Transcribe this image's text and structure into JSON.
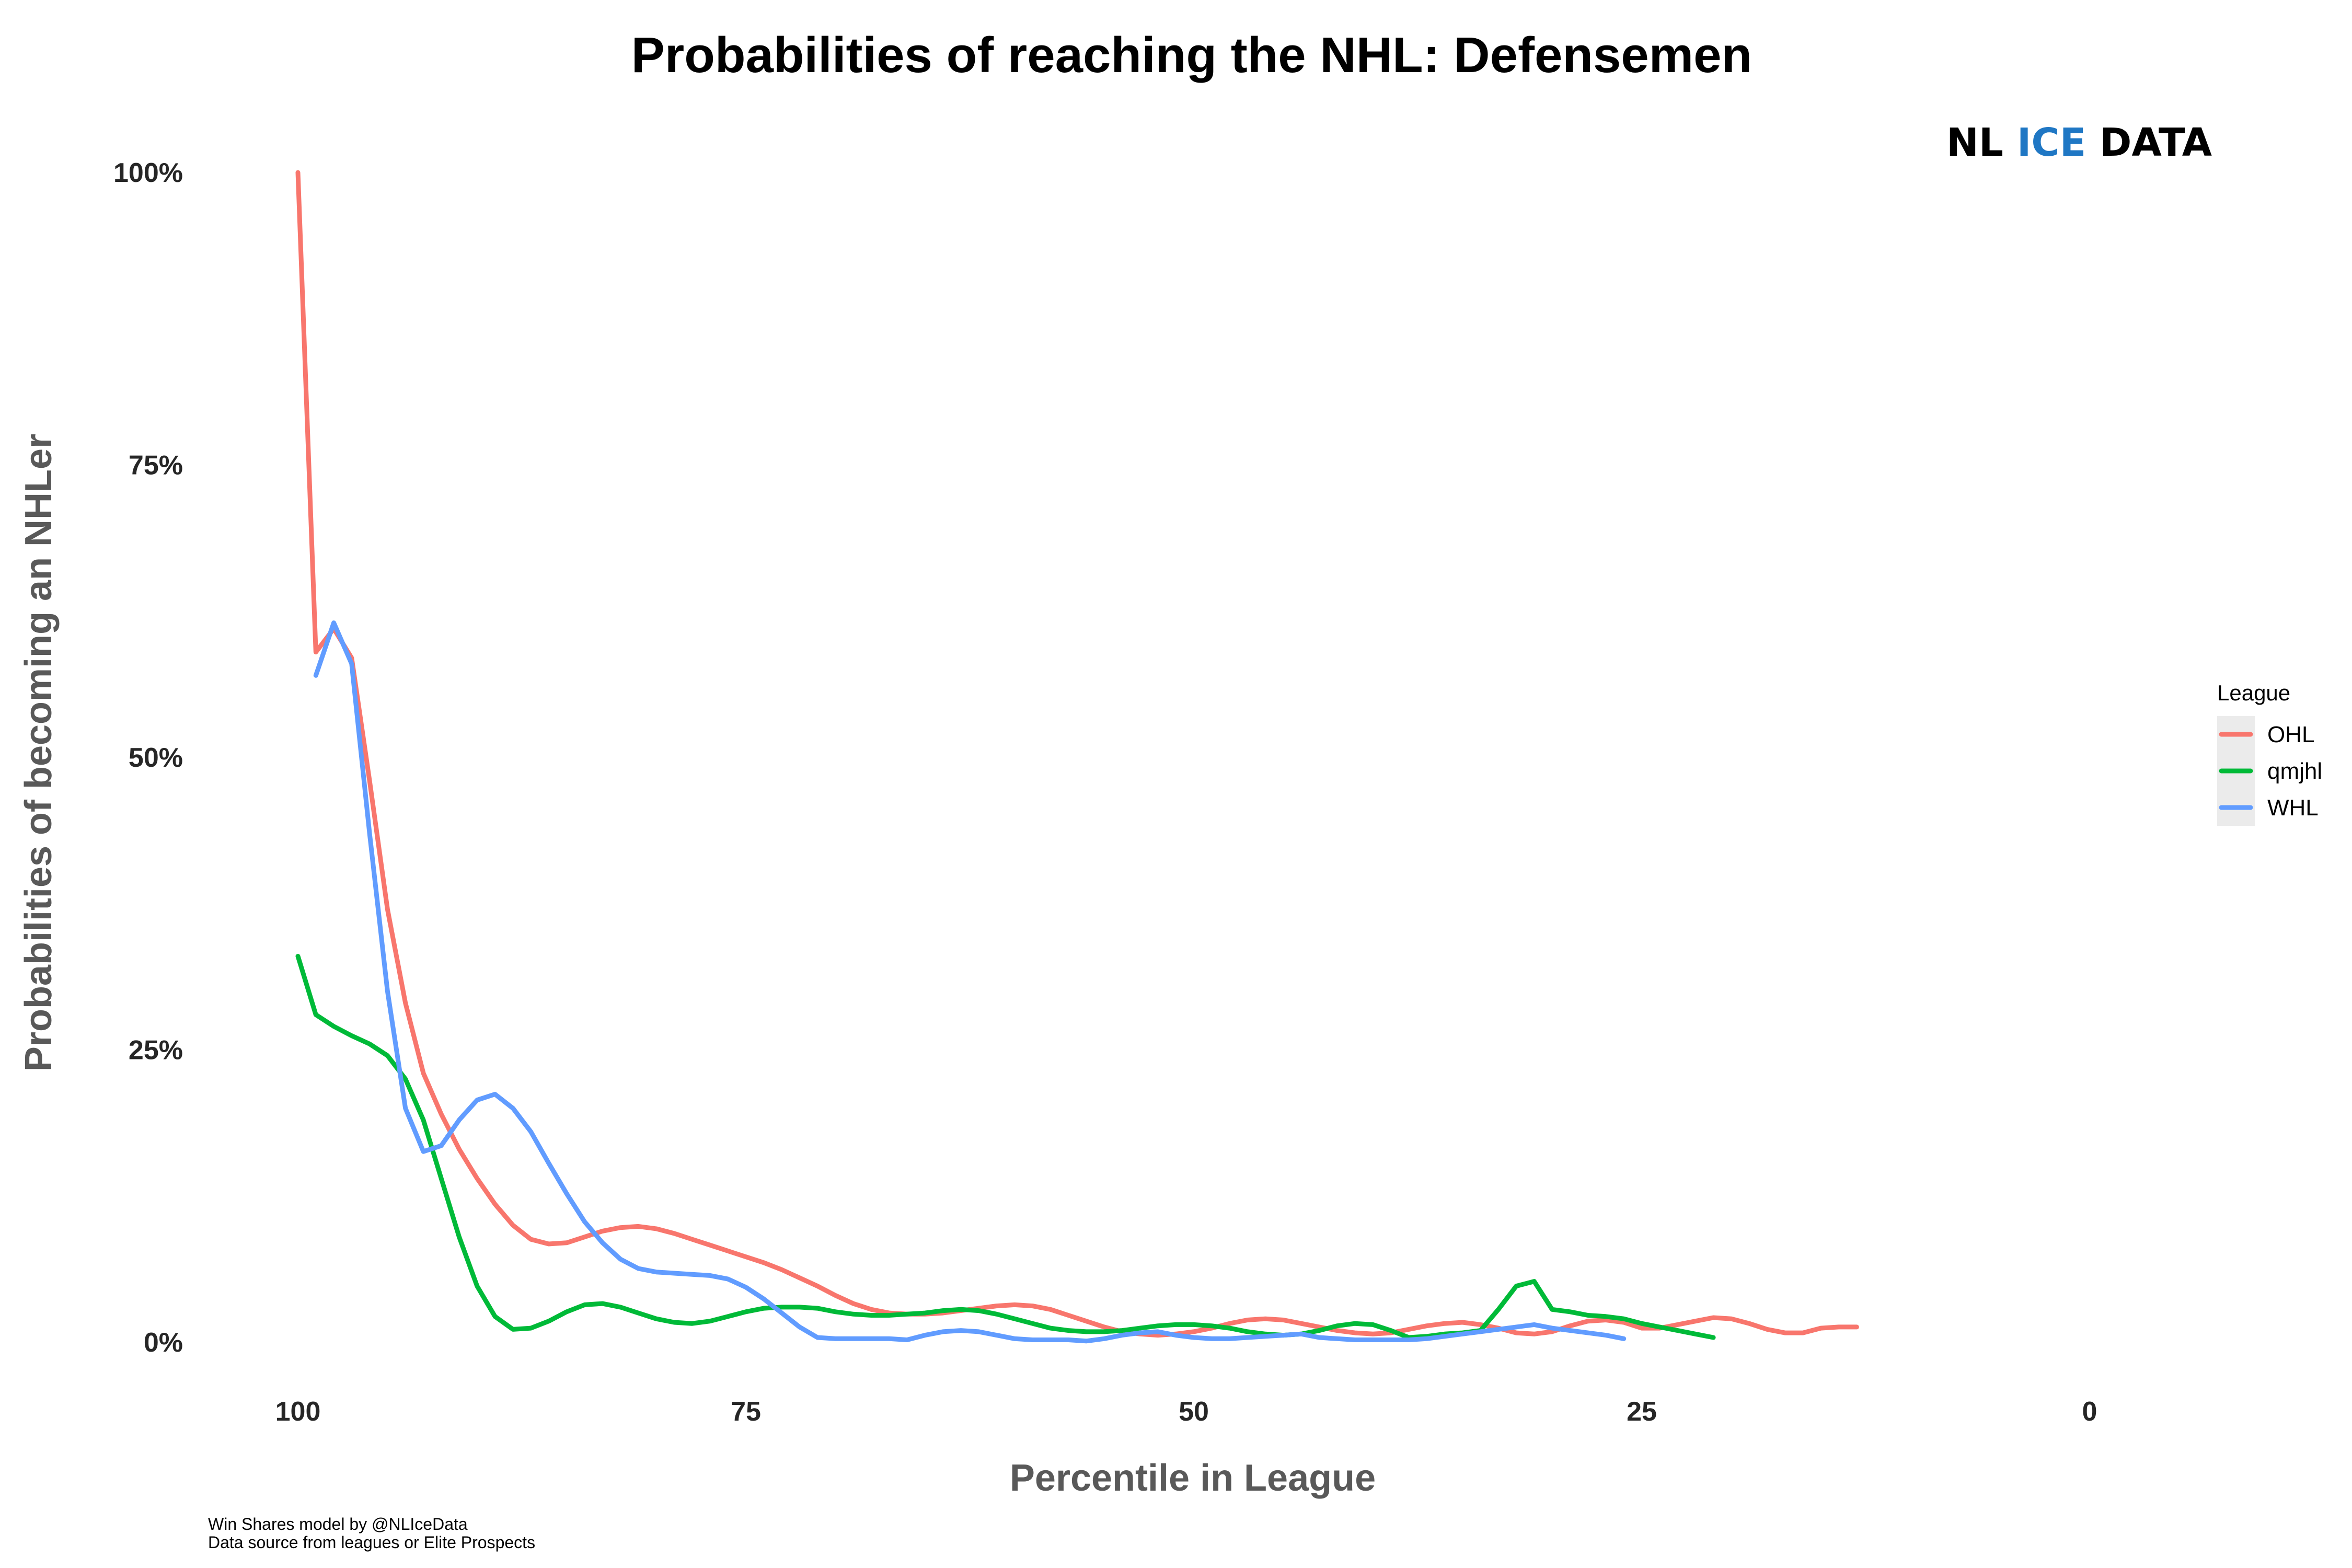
{
  "chart_data": {
    "type": "line",
    "title": "Probabilities of reaching the NHL: Defensemen",
    "xlabel": "Percentile in League",
    "ylabel": "Probabilities of becoming an NHLer",
    "xlim": [
      100,
      0
    ],
    "ylim": [
      0,
      1
    ],
    "x_ticks": [
      100,
      75,
      50,
      25,
      0
    ],
    "x_tick_labels": [
      "100",
      "75",
      "50",
      "25",
      "0"
    ],
    "y_ticks": [
      0,
      0.25,
      0.5,
      0.75,
      1.0
    ],
    "y_tick_labels": [
      "0%",
      "25%",
      "50%",
      "75%",
      "100%"
    ],
    "grid": false,
    "legend": {
      "title": "League",
      "position": "right"
    },
    "series": [
      {
        "name": "OHL",
        "color": "#F8766D",
        "points": [
          [
            100,
            1.0
          ],
          [
            99,
            0.59
          ],
          [
            98,
            0.61
          ],
          [
            97,
            0.585
          ],
          [
            96,
            0.48
          ],
          [
            95,
            0.37
          ],
          [
            94,
            0.29
          ],
          [
            93,
            0.23
          ],
          [
            92,
            0.195
          ],
          [
            91,
            0.165
          ],
          [
            90,
            0.14
          ],
          [
            89,
            0.118
          ],
          [
            88,
            0.1
          ],
          [
            87,
            0.088
          ],
          [
            86,
            0.084
          ],
          [
            85,
            0.085
          ],
          [
            84,
            0.09
          ],
          [
            83,
            0.095
          ],
          [
            82,
            0.098
          ],
          [
            81,
            0.099
          ],
          [
            80,
            0.097
          ],
          [
            79,
            0.093
          ],
          [
            78,
            0.088
          ],
          [
            77,
            0.083
          ],
          [
            76,
            0.078
          ],
          [
            75,
            0.073
          ],
          [
            74,
            0.068
          ],
          [
            73,
            0.062
          ],
          [
            72,
            0.055
          ],
          [
            71,
            0.048
          ],
          [
            70,
            0.04
          ],
          [
            69,
            0.033
          ],
          [
            68,
            0.028
          ],
          [
            67,
            0.025
          ],
          [
            66,
            0.024
          ],
          [
            65,
            0.024
          ],
          [
            64,
            0.025
          ],
          [
            63,
            0.027
          ],
          [
            62,
            0.029
          ],
          [
            61,
            0.031
          ],
          [
            60,
            0.032
          ],
          [
            59,
            0.031
          ],
          [
            58,
            0.028
          ],
          [
            57,
            0.023
          ],
          [
            56,
            0.018
          ],
          [
            55,
            0.013
          ],
          [
            54,
            0.009
          ],
          [
            53,
            0.007
          ],
          [
            52,
            0.006
          ],
          [
            51,
            0.007
          ],
          [
            50,
            0.009
          ],
          [
            49,
            0.012
          ],
          [
            48,
            0.016
          ],
          [
            47,
            0.019
          ],
          [
            46,
            0.02
          ],
          [
            45,
            0.019
          ],
          [
            44,
            0.016
          ],
          [
            43,
            0.013
          ],
          [
            42,
            0.01
          ],
          [
            41,
            0.008
          ],
          [
            40,
            0.007
          ],
          [
            39,
            0.008
          ],
          [
            38,
            0.011
          ],
          [
            37,
            0.014
          ],
          [
            36,
            0.016
          ],
          [
            35,
            0.017
          ],
          [
            34,
            0.015
          ],
          [
            33,
            0.012
          ],
          [
            32,
            0.008
          ],
          [
            31,
            0.007
          ],
          [
            30,
            0.009
          ],
          [
            29,
            0.014
          ],
          [
            28,
            0.018
          ],
          [
            27,
            0.019
          ],
          [
            26,
            0.017
          ],
          [
            25,
            0.012
          ],
          [
            24,
            0.012
          ],
          [
            23,
            0.015
          ],
          [
            22,
            0.018
          ],
          [
            21,
            0.021
          ],
          [
            20,
            0.02
          ],
          [
            19,
            0.016
          ],
          [
            18,
            0.011
          ],
          [
            17,
            0.008
          ],
          [
            16,
            0.008
          ],
          [
            15,
            0.012
          ],
          [
            14,
            0.013
          ],
          [
            13,
            0.013
          ]
        ]
      },
      {
        "name": "qmjhl",
        "color": "#00BA38",
        "points": [
          [
            100,
            0.33
          ],
          [
            99,
            0.28
          ],
          [
            98,
            0.27
          ],
          [
            97,
            0.262
          ],
          [
            96,
            0.255
          ],
          [
            95,
            0.245
          ],
          [
            94,
            0.225
          ],
          [
            93,
            0.19
          ],
          [
            92,
            0.14
          ],
          [
            91,
            0.09
          ],
          [
            90,
            0.048
          ],
          [
            89,
            0.022
          ],
          [
            88,
            0.011
          ],
          [
            87,
            0.012
          ],
          [
            86,
            0.018
          ],
          [
            85,
            0.026
          ],
          [
            84,
            0.032
          ],
          [
            83,
            0.033
          ],
          [
            82,
            0.03
          ],
          [
            81,
            0.025
          ],
          [
            80,
            0.02
          ],
          [
            79,
            0.017
          ],
          [
            78,
            0.016
          ],
          [
            77,
            0.018
          ],
          [
            76,
            0.022
          ],
          [
            75,
            0.026
          ],
          [
            74,
            0.029
          ],
          [
            73,
            0.03
          ],
          [
            72,
            0.03
          ],
          [
            71,
            0.029
          ],
          [
            70,
            0.026
          ],
          [
            69,
            0.024
          ],
          [
            68,
            0.023
          ],
          [
            67,
            0.023
          ],
          [
            66,
            0.024
          ],
          [
            65,
            0.025
          ],
          [
            64,
            0.027
          ],
          [
            63,
            0.028
          ],
          [
            62,
            0.027
          ],
          [
            61,
            0.024
          ],
          [
            60,
            0.02
          ],
          [
            59,
            0.016
          ],
          [
            58,
            0.012
          ],
          [
            57,
            0.01
          ],
          [
            56,
            0.009
          ],
          [
            55,
            0.009
          ],
          [
            54,
            0.01
          ],
          [
            53,
            0.012
          ],
          [
            52,
            0.014
          ],
          [
            51,
            0.015
          ],
          [
            50,
            0.015
          ],
          [
            49,
            0.014
          ],
          [
            48,
            0.012
          ],
          [
            47,
            0.009
          ],
          [
            46,
            0.007
          ],
          [
            45,
            0.006
          ],
          [
            44,
            0.007
          ],
          [
            43,
            0.01
          ],
          [
            42,
            0.014
          ],
          [
            41,
            0.016
          ],
          [
            40,
            0.015
          ],
          [
            39,
            0.01
          ],
          [
            38,
            0.004
          ],
          [
            37,
            0.005
          ],
          [
            36,
            0.007
          ],
          [
            35,
            0.008
          ],
          [
            34,
            0.01
          ],
          [
            33,
            0.028
          ],
          [
            32,
            0.048
          ],
          [
            31,
            0.052
          ],
          [
            30,
            0.028
          ],
          [
            29,
            0.026
          ],
          [
            28,
            0.023
          ],
          [
            27,
            0.022
          ],
          [
            26,
            0.02
          ],
          [
            25,
            0.016
          ],
          [
            24,
            0.013
          ],
          [
            23,
            0.01
          ],
          [
            22,
            0.007
          ],
          [
            21,
            0.004
          ]
        ]
      },
      {
        "name": "WHL",
        "color": "#619CFF",
        "points": [
          [
            99,
            0.57
          ],
          [
            98,
            0.615
          ],
          [
            97,
            0.58
          ],
          [
            96,
            0.435
          ],
          [
            95,
            0.3
          ],
          [
            94,
            0.2
          ],
          [
            93,
            0.163
          ],
          [
            92,
            0.168
          ],
          [
            91,
            0.19
          ],
          [
            90,
            0.207
          ],
          [
            89,
            0.212
          ],
          [
            88,
            0.2
          ],
          [
            87,
            0.18
          ],
          [
            86,
            0.153
          ],
          [
            85,
            0.127
          ],
          [
            84,
            0.103
          ],
          [
            83,
            0.085
          ],
          [
            82,
            0.071
          ],
          [
            81,
            0.063
          ],
          [
            80,
            0.06
          ],
          [
            79,
            0.059
          ],
          [
            78,
            0.058
          ],
          [
            77,
            0.057
          ],
          [
            76,
            0.054
          ],
          [
            75,
            0.047
          ],
          [
            74,
            0.037
          ],
          [
            73,
            0.025
          ],
          [
            72,
            0.013
          ],
          [
            71,
            0.004
          ],
          [
            70,
            0.003
          ],
          [
            69,
            0.003
          ],
          [
            68,
            0.003
          ],
          [
            67,
            0.003
          ],
          [
            66,
            0.002
          ],
          [
            65,
            0.006
          ],
          [
            64,
            0.009
          ],
          [
            63,
            0.01
          ],
          [
            62,
            0.009
          ],
          [
            61,
            0.006
          ],
          [
            60,
            0.003
          ],
          [
            59,
            0.002
          ],
          [
            58,
            0.002
          ],
          [
            57,
            0.002
          ],
          [
            56,
            0.001
          ],
          [
            55,
            0.003
          ],
          [
            54,
            0.006
          ],
          [
            53,
            0.008
          ],
          [
            52,
            0.009
          ],
          [
            51,
            0.006
          ],
          [
            50,
            0.004
          ],
          [
            49,
            0.003
          ],
          [
            48,
            0.003
          ],
          [
            47,
            0.004
          ],
          [
            46,
            0.005
          ],
          [
            45,
            0.006
          ],
          [
            44,
            0.007
          ],
          [
            43,
            0.004
          ],
          [
            42,
            0.003
          ],
          [
            41,
            0.002
          ],
          [
            40,
            0.002
          ],
          [
            39,
            0.002
          ],
          [
            38,
            0.002
          ],
          [
            37,
            0.003
          ],
          [
            36,
            0.005
          ],
          [
            35,
            0.007
          ],
          [
            34,
            0.009
          ],
          [
            33,
            0.011
          ],
          [
            32,
            0.013
          ],
          [
            31,
            0.015
          ],
          [
            30,
            0.012
          ],
          [
            29,
            0.01
          ],
          [
            28,
            0.008
          ],
          [
            27,
            0.006
          ],
          [
            26,
            0.003
          ]
        ]
      }
    ]
  },
  "logo": {
    "parts": [
      {
        "text": "NL ",
        "color": "#000000"
      },
      {
        "text": "ICE",
        "color": "#1F77C4"
      },
      {
        "text": " DATA",
        "color": "#000000"
      }
    ]
  },
  "caption": {
    "line1": "Win Shares model by @NLIceData",
    "line2": "Data source from leagues or Elite Prospects"
  }
}
